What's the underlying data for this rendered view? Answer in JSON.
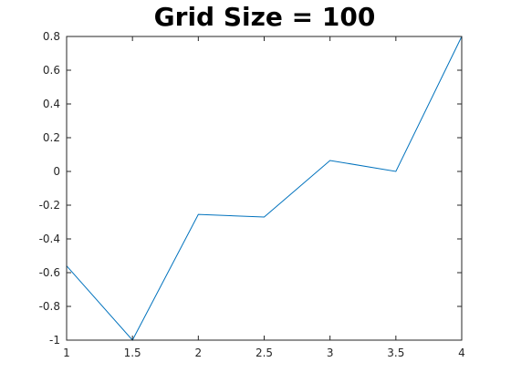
{
  "chart_data": {
    "type": "line",
    "title": "Grid Size = 100",
    "xlabel": "",
    "ylabel": "",
    "xlim": [
      1,
      4
    ],
    "ylim": [
      -1,
      0.8
    ],
    "xticks": [
      1,
      1.5,
      2,
      2.5,
      3,
      3.5,
      4
    ],
    "xtick_labels": [
      "1",
      "1.5",
      "2",
      "2.5",
      "3",
      "3.5",
      "4"
    ],
    "yticks": [
      -1,
      -0.8,
      -0.6,
      -0.4,
      -0.2,
      0,
      0.2,
      0.4,
      0.6,
      0.8
    ],
    "ytick_labels": [
      "-1",
      "-0.8",
      "-0.6",
      "-0.4",
      "-0.2",
      "0",
      "0.2",
      "0.4",
      "0.6",
      "0.8"
    ],
    "grid": false,
    "series": [
      {
        "color": "#0072BD",
        "x": [
          1,
          1.5,
          2,
          2.5,
          3,
          3.5,
          4
        ],
        "y": [
          -0.56,
          -1.0,
          -0.255,
          -0.27,
          0.065,
          0.0,
          0.8
        ]
      }
    ]
  }
}
